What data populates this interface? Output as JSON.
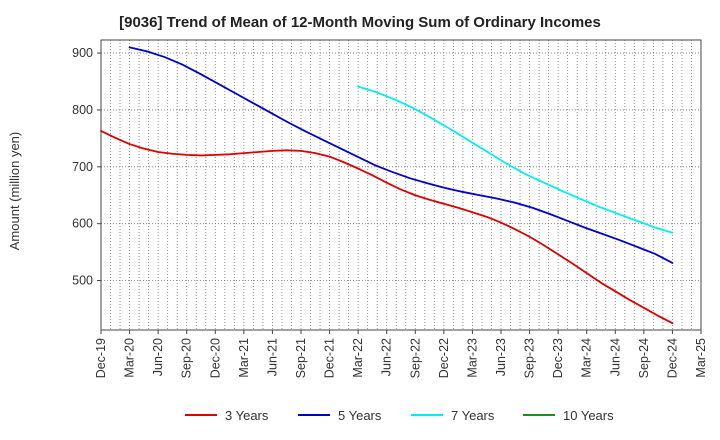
{
  "chart_data": {
    "type": "line",
    "title": "[9036]  Trend of Mean of 12-Month Moving Sum of Ordinary Incomes",
    "xlabel": "",
    "ylabel": "Amount (million yen)",
    "ylim": [
      413,
      923
    ],
    "yticks": [
      500,
      600,
      700,
      800,
      900
    ],
    "xticks": [
      "Dec-19",
      "Mar-20",
      "Jun-20",
      "Sep-20",
      "Dec-20",
      "Mar-21",
      "Jun-21",
      "Sep-21",
      "Dec-21",
      "Mar-22",
      "Jun-22",
      "Sep-22",
      "Dec-22",
      "Mar-23",
      "Jun-23",
      "Sep-23",
      "Dec-23",
      "Mar-24",
      "Jun-24",
      "Sep-24",
      "Dec-24",
      "Mar-25"
    ],
    "grid": true,
    "legend_position": "bottom",
    "series": [
      {
        "name": "3 Years",
        "color": "#dd0000",
        "start_index": 0,
        "values": [
          763,
          751,
          740,
          732,
          726,
          723,
          721,
          720,
          721,
          722,
          724,
          726,
          728,
          729,
          728,
          724,
          718,
          708,
          697,
          685,
          672,
          660,
          650,
          642,
          635,
          628,
          620,
          612,
          602,
          590,
          577,
          562,
          546,
          530,
          513,
          496,
          481,
          466,
          452,
          438,
          425
        ]
      },
      {
        "name": "5 Years",
        "color": "#0000cc",
        "start_index": 2,
        "values": [
          910,
          903,
          893,
          880,
          864,
          847,
          830,
          813,
          796,
          779,
          763,
          748,
          733,
          718,
          703,
          691,
          680,
          671,
          663,
          656,
          650,
          644,
          637,
          628,
          617,
          605,
          593,
          582,
          571,
          559,
          547,
          531
        ]
      },
      {
        "name": "7 Years",
        "color": "#00eeee",
        "start_index": 18,
        "values": [
          841,
          831,
          818,
          803,
          785,
          766,
          746,
          726,
          706,
          688,
          673,
          658,
          644,
          630,
          618,
          606,
          594,
          584
        ]
      },
      {
        "name": "10 Years",
        "color": "#228b22",
        "start_index": 0,
        "values": []
      }
    ]
  }
}
